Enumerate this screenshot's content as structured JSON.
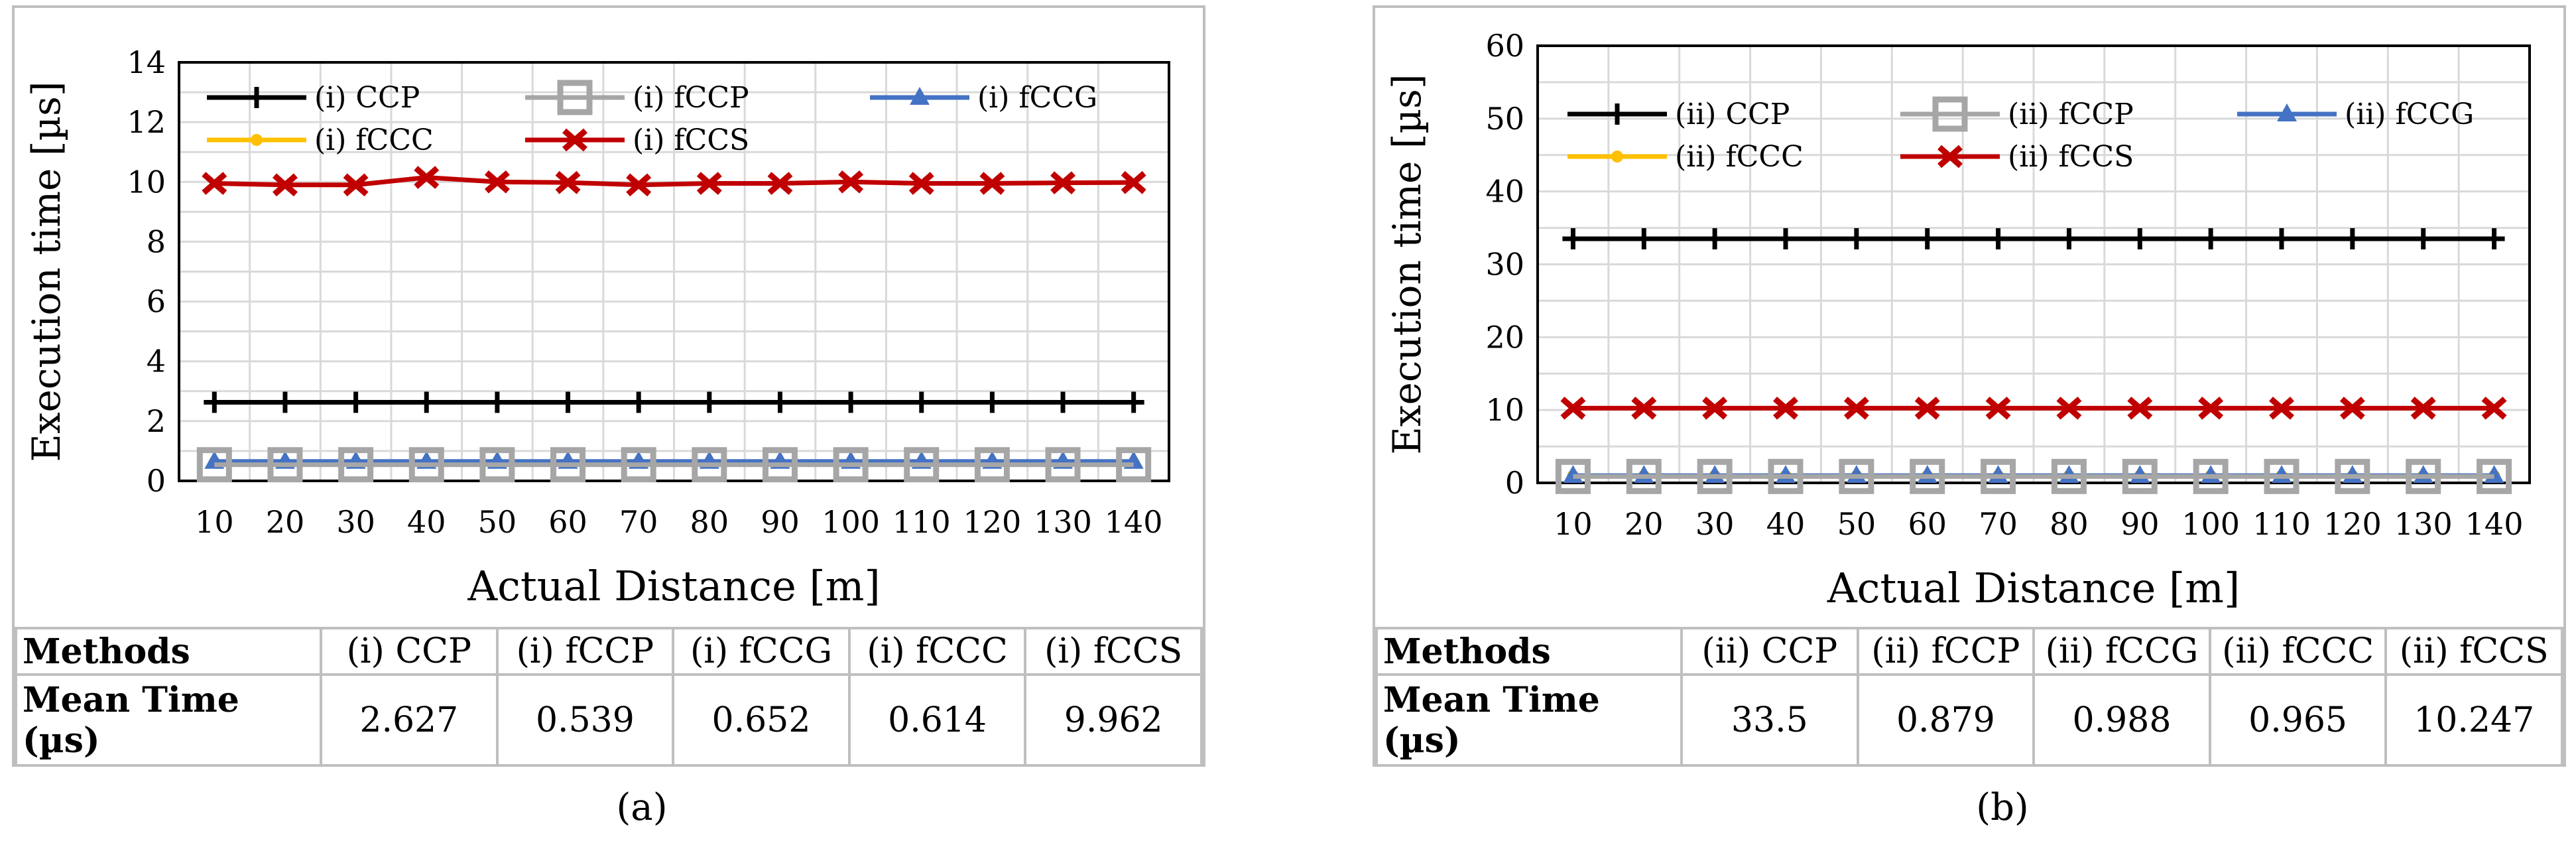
{
  "chart_data": [
    {
      "type": "line",
      "title": "",
      "xlabel": "Actual Distance [m]",
      "ylabel": "Execution time [µs]",
      "ylim": [
        0,
        14
      ],
      "yticks": [
        0,
        2,
        4,
        6,
        8,
        10,
        12,
        14
      ],
      "grid": true,
      "legend_position": "top",
      "categories": [
        "10",
        "20",
        "30",
        "40",
        "50",
        "60",
        "70",
        "80",
        "90",
        "100",
        "110",
        "120",
        "130",
        "140"
      ],
      "series": [
        {
          "name": "(i) CCP",
          "color": "#000000",
          "marker": "plus",
          "values": [
            2.63,
            2.63,
            2.63,
            2.63,
            2.63,
            2.63,
            2.63,
            2.63,
            2.63,
            2.63,
            2.63,
            2.63,
            2.63,
            2.63
          ]
        },
        {
          "name": "(i) fCCP",
          "color": "#a6a6a6",
          "marker": "square",
          "values": [
            0.54,
            0.54,
            0.54,
            0.54,
            0.54,
            0.54,
            0.54,
            0.54,
            0.54,
            0.54,
            0.54,
            0.54,
            0.54,
            0.54
          ]
        },
        {
          "name": "(i) fCCG",
          "color": "#4472c4",
          "marker": "triangle",
          "values": [
            0.65,
            0.65,
            0.65,
            0.65,
            0.65,
            0.65,
            0.65,
            0.65,
            0.65,
            0.65,
            0.65,
            0.65,
            0.65,
            0.65
          ]
        },
        {
          "name": "(i) fCCC",
          "color": "#ffc000",
          "marker": "circle",
          "values": [
            0.61,
            0.61,
            0.61,
            0.61,
            0.61,
            0.61,
            0.61,
            0.61,
            0.61,
            0.61,
            0.61,
            0.61,
            0.61,
            0.61
          ]
        },
        {
          "name": "(i) fCCS",
          "color": "#c00000",
          "marker": "x",
          "values": [
            9.95,
            9.9,
            9.9,
            10.15,
            10.0,
            9.98,
            9.9,
            9.95,
            9.95,
            10.0,
            9.95,
            9.95,
            9.97,
            9.98
          ]
        }
      ]
    },
    {
      "type": "line",
      "title": "",
      "xlabel": "Actual Distance [m]",
      "ylabel": "Execution time [µs]",
      "ylim": [
        0,
        60
      ],
      "yticks": [
        0,
        10,
        20,
        30,
        40,
        50,
        60
      ],
      "grid": true,
      "legend_position": "top",
      "categories": [
        "10",
        "20",
        "30",
        "40",
        "50",
        "60",
        "70",
        "80",
        "90",
        "100",
        "110",
        "120",
        "130",
        "140"
      ],
      "series": [
        {
          "name": "(ii) CCP",
          "color": "#000000",
          "marker": "plus",
          "values": [
            33.5,
            33.5,
            33.5,
            33.5,
            33.5,
            33.5,
            33.5,
            33.5,
            33.5,
            33.5,
            33.5,
            33.5,
            33.5,
            33.5
          ]
        },
        {
          "name": "(ii) fCCP",
          "color": "#a6a6a6",
          "marker": "square",
          "values": [
            0.88,
            0.88,
            0.88,
            0.88,
            0.88,
            0.88,
            0.88,
            0.88,
            0.88,
            0.88,
            0.88,
            0.88,
            0.88,
            0.88
          ]
        },
        {
          "name": "(ii) fCCG",
          "color": "#4472c4",
          "marker": "triangle",
          "values": [
            0.99,
            0.99,
            0.99,
            0.99,
            0.99,
            0.99,
            0.99,
            0.99,
            0.99,
            0.99,
            0.99,
            0.99,
            0.99,
            0.99
          ]
        },
        {
          "name": "(ii) fCCC",
          "color": "#ffc000",
          "marker": "circle",
          "values": [
            0.97,
            0.97,
            0.97,
            0.97,
            0.97,
            0.97,
            0.97,
            0.97,
            0.97,
            0.97,
            0.97,
            0.97,
            0.97,
            0.97
          ]
        },
        {
          "name": "(ii) fCCS",
          "color": "#c00000",
          "marker": "x",
          "values": [
            10.25,
            10.25,
            10.25,
            10.25,
            10.25,
            10.25,
            10.25,
            10.25,
            10.25,
            10.25,
            10.25,
            10.25,
            10.25,
            10.25
          ]
        }
      ]
    }
  ],
  "tables": [
    {
      "row1_label": "Methods",
      "row2_label": "Mean Time (µs)",
      "methods": [
        "(i) CCP",
        "(i) fCCP",
        "(i) fCCG",
        "(i) fCCC",
        "(i) fCCS"
      ],
      "means": [
        "2.627",
        "0.539",
        "0.652",
        "0.614",
        "9.962"
      ]
    },
    {
      "row1_label": "Methods",
      "row2_label": "Mean Time (µs)",
      "methods": [
        "(ii) CCP",
        "(ii) fCCP",
        "(ii) fCCG",
        "(ii) fCCC",
        "(ii) fCCS"
      ],
      "means": [
        "33.5",
        "0.879",
        "0.988",
        "0.965",
        "10.247"
      ]
    }
  ],
  "captions": [
    "(a)",
    "(b)"
  ]
}
